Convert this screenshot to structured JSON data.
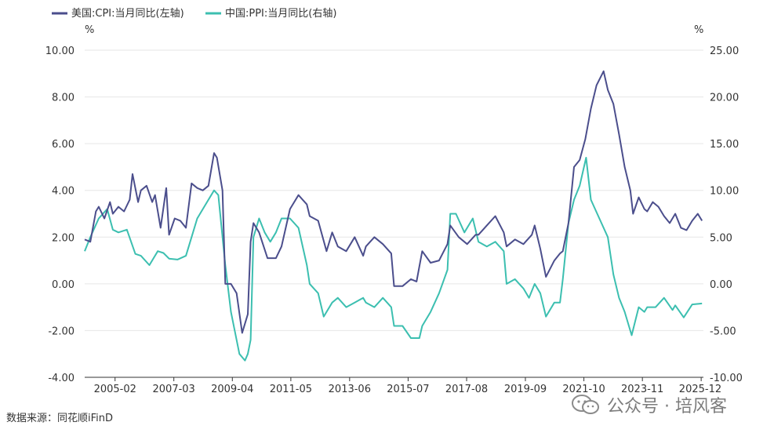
{
  "source_text": "数据来源：同花顺iFinD",
  "watermark": {
    "text": "公众号 · 培风客",
    "icon": "wechat-icon"
  },
  "colors": {
    "us_cpi": "#4b4e8c",
    "cn_ppi": "#3cbfb0",
    "grid": "#e6e6e6",
    "axis": "#333333"
  },
  "chart_data": {
    "type": "line",
    "title": "",
    "left_axis": {
      "unit": "%",
      "ylim": [
        -4,
        10
      ],
      "ticks": [
        "10.00",
        "8.00",
        "6.00",
        "4.00",
        "2.00",
        "0.00",
        "-2.00",
        "-4.00"
      ]
    },
    "right_axis": {
      "unit": "%",
      "ylim": [
        -10,
        25
      ],
      "ticks": [
        "25.00",
        "20.00",
        "15.00",
        "10.00",
        "5.00",
        "0.00",
        "-5.00",
        "-10.00"
      ]
    },
    "x_range": [
      2004.0,
      2026.0
    ],
    "x_ticks": [
      "2005-02",
      "2007-03",
      "2009-04",
      "2011-05",
      "2013-06",
      "2015-07",
      "2017-08",
      "2019-09",
      "2021-10",
      "2023-11",
      "2025-12"
    ],
    "x_tick_positions": [
      2005.08,
      2007.17,
      2009.25,
      2011.33,
      2013.42,
      2015.5,
      2017.58,
      2019.67,
      2021.75,
      2023.83,
      2025.92
    ],
    "series": [
      {
        "name": "美国:CPI:当月同比(左轴)",
        "axis": "left",
        "x": [
          2004.0,
          2004.2,
          2004.4,
          2004.5,
          2004.7,
          2004.9,
          2005.0,
          2005.2,
          2005.4,
          2005.6,
          2005.7,
          2005.9,
          2006.0,
          2006.2,
          2006.4,
          2006.5,
          2006.7,
          2006.9,
          2007.0,
          2007.2,
          2007.4,
          2007.6,
          2007.8,
          2008.0,
          2008.2,
          2008.4,
          2008.6,
          2008.7,
          2008.9,
          2009.0,
          2009.2,
          2009.4,
          2009.6,
          2009.8,
          2009.9,
          2010.0,
          2010.2,
          2010.5,
          2010.8,
          2011.0,
          2011.3,
          2011.6,
          2011.9,
          2012.0,
          2012.3,
          2012.6,
          2012.8,
          2013.0,
          2013.3,
          2013.6,
          2013.9,
          2014.0,
          2014.3,
          2014.6,
          2014.9,
          2015.0,
          2015.3,
          2015.6,
          2015.8,
          2016.0,
          2016.3,
          2016.6,
          2016.9,
          2017.0,
          2017.3,
          2017.6,
          2017.9,
          2018.0,
          2018.3,
          2018.6,
          2018.9,
          2019.0,
          2019.3,
          2019.6,
          2019.9,
          2020.0,
          2020.2,
          2020.4,
          2020.7,
          2020.9,
          2021.0,
          2021.2,
          2021.4,
          2021.6,
          2021.8,
          2022.0,
          2022.2,
          2022.45,
          2022.6,
          2022.8,
          2023.0,
          2023.2,
          2023.4,
          2023.5,
          2023.7,
          2023.9,
          2024.0,
          2024.2,
          2024.4,
          2024.6,
          2024.8,
          2025.0,
          2025.2,
          2025.4,
          2025.6,
          2025.8,
          2025.95
        ],
        "values": [
          1.9,
          1.8,
          3.1,
          3.3,
          2.8,
          3.5,
          3.0,
          3.3,
          3.1,
          3.6,
          4.7,
          3.5,
          4.0,
          4.2,
          3.5,
          3.8,
          2.4,
          4.1,
          2.1,
          2.8,
          2.7,
          2.4,
          4.3,
          4.1,
          4.0,
          4.2,
          5.6,
          5.4,
          4.0,
          0.0,
          0.0,
          -0.4,
          -2.1,
          -1.3,
          1.8,
          2.6,
          2.2,
          1.1,
          1.1,
          1.6,
          3.2,
          3.8,
          3.4,
          2.9,
          2.7,
          1.4,
          2.2,
          1.6,
          1.4,
          2.0,
          1.2,
          1.6,
          2.0,
          1.7,
          1.3,
          -0.1,
          -0.1,
          0.2,
          0.1,
          1.4,
          0.9,
          1.0,
          1.7,
          2.5,
          2.0,
          1.7,
          2.1,
          2.1,
          2.5,
          2.9,
          2.2,
          1.6,
          1.9,
          1.7,
          2.1,
          2.5,
          1.5,
          0.3,
          1.0,
          1.3,
          1.4,
          2.6,
          5.0,
          5.3,
          6.2,
          7.5,
          8.5,
          9.1,
          8.3,
          7.7,
          6.4,
          5.0,
          4.0,
          3.0,
          3.7,
          3.2,
          3.1,
          3.5,
          3.3,
          2.9,
          2.6,
          3.0,
          2.4,
          2.3,
          2.7,
          3.0,
          2.7
        ]
      },
      {
        "name": "中国:PPI:当月同比(右轴)",
        "axis": "right",
        "x": [
          2004.0,
          2004.2,
          2004.5,
          2004.8,
          2005.0,
          2005.2,
          2005.5,
          2005.8,
          2006.0,
          2006.3,
          2006.6,
          2006.8,
          2007.0,
          2007.3,
          2007.6,
          2007.8,
          2008.0,
          2008.3,
          2008.6,
          2008.75,
          2009.0,
          2009.2,
          2009.5,
          2009.7,
          2009.8,
          2009.9,
          2010.0,
          2010.2,
          2010.4,
          2010.6,
          2010.8,
          2011.0,
          2011.3,
          2011.6,
          2011.9,
          2012.0,
          2012.3,
          2012.5,
          2012.8,
          2013.0,
          2013.3,
          2013.6,
          2013.9,
          2014.0,
          2014.3,
          2014.6,
          2014.9,
          2015.0,
          2015.3,
          2015.6,
          2015.9,
          2016.0,
          2016.3,
          2016.6,
          2016.9,
          2017.0,
          2017.2,
          2017.5,
          2017.8,
          2018.0,
          2018.3,
          2018.6,
          2018.9,
          2019.0,
          2019.3,
          2019.6,
          2019.8,
          2020.0,
          2020.2,
          2020.4,
          2020.7,
          2020.9,
          2021.0,
          2021.2,
          2021.4,
          2021.6,
          2021.83,
          2022.0,
          2022.3,
          2022.6,
          2022.8,
          2023.0,
          2023.2,
          2023.45,
          2023.7,
          2023.9,
          2024.0,
          2024.3,
          2024.6,
          2024.9,
          2025.0,
          2025.3,
          2025.6,
          2025.95
        ],
        "values": [
          3.5,
          5.0,
          7.0,
          8.0,
          5.8,
          5.5,
          5.8,
          3.2,
          3.0,
          2.0,
          3.5,
          3.3,
          2.7,
          2.6,
          3.0,
          5.0,
          7.0,
          8.5,
          10.0,
          9.5,
          2.0,
          -3.0,
          -7.5,
          -8.2,
          -7.5,
          -6.0,
          5.0,
          7.0,
          5.5,
          4.5,
          5.5,
          7.0,
          7.0,
          6.0,
          2.0,
          0.0,
          -1.0,
          -3.5,
          -2.0,
          -1.5,
          -2.5,
          -2.0,
          -1.5,
          -2.0,
          -2.5,
          -1.5,
          -2.5,
          -4.5,
          -4.5,
          -5.8,
          -5.8,
          -4.5,
          -3.0,
          -1.0,
          1.5,
          7.5,
          7.5,
          5.5,
          7.0,
          4.5,
          4.0,
          4.5,
          3.5,
          0.0,
          0.5,
          -0.5,
          -1.5,
          0.0,
          -1.0,
          -3.5,
          -2.0,
          -2.0,
          0.5,
          6.5,
          9.0,
          10.5,
          13.5,
          9.0,
          7.0,
          5.0,
          1.0,
          -1.5,
          -3.0,
          -5.5,
          -2.5,
          -3.0,
          -2.5,
          -2.5,
          -1.5,
          -2.8,
          -2.3,
          -3.6,
          -2.2,
          -2.1
        ]
      }
    ]
  }
}
